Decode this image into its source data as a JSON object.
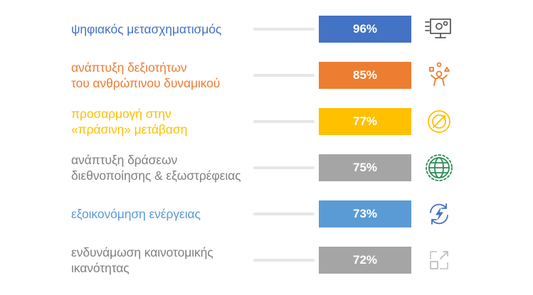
{
  "chart_data": {
    "type": "bar",
    "orientation": "horizontal",
    "max": 100,
    "series": [
      {
        "category_lines": [
          "ψηφιακός μετασχηματισμός"
        ],
        "value": 96,
        "value_label": "96%",
        "color": "#4472c4",
        "icon": "digital-transformation-icon"
      },
      {
        "category_lines": [
          "ανάπτυξη δεξιοτήτων",
          "του ανθρώπινου δυναμικού"
        ],
        "value": 85,
        "value_label": "85%",
        "color": "#ed7d31",
        "icon": "people-skills-icon"
      },
      {
        "category_lines": [
          "προσαρμογή στην",
          "«πράσινη» μετάβαση"
        ],
        "value": 77,
        "value_label": "77%",
        "color": "#ffc000",
        "icon": "green-transition-icon"
      },
      {
        "category_lines": [
          "ανάπτυξη δράσεων",
          "διεθνοποίησης & εξωστρέφειας"
        ],
        "value": 75,
        "value_label": "75%",
        "color": "#a5a5a5",
        "icon": "globe-icon"
      },
      {
        "category_lines": [
          "εξοικονόμηση ενέργειας"
        ],
        "value": 73,
        "value_label": "73%",
        "color": "#5b9bd5",
        "icon": "energy-saving-icon"
      },
      {
        "category_lines": [
          "ενδυνάμωση καινοτομικής",
          "ικανότητας"
        ],
        "value": 72,
        "value_label": "72%",
        "color": "#a5a5a5",
        "icon": "expand-icon"
      }
    ],
    "text_colors": [
      "#4472c4",
      "#ed7d31",
      "#ffc000",
      "#7f7f7f",
      "#5b9bd5",
      "#7f7f7f"
    ],
    "icon_colors": [
      "#595959",
      "#ed7d31",
      "#ffc000",
      "#2e8b57",
      "#4472c4",
      "#bfbfbf"
    ]
  }
}
